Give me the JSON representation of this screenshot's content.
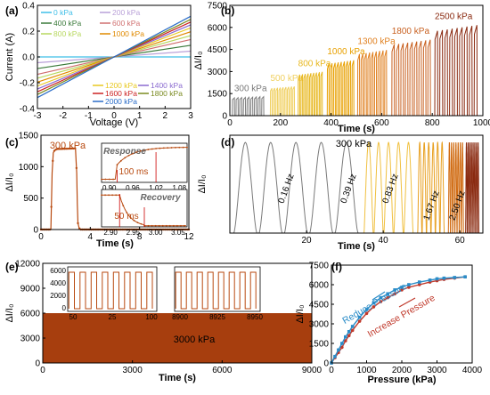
{
  "panels": {
    "a": {
      "letter": "(a)",
      "xlabel": "Voltage (V)",
      "ylabel": "Current (A)",
      "xticks": [
        "-3",
        "-2",
        "-1",
        "0",
        "1",
        "2",
        "3"
      ],
      "yticks": [
        "-0.4",
        "-0.2",
        "0.0",
        "0.2",
        "0.4"
      ]
    },
    "b": {
      "letter": "(b)",
      "xlabel": "Time (s)",
      "ylabel": "ΔI/I₀",
      "xticks": [
        "0",
        "200",
        "400",
        "600",
        "800",
        "1000"
      ],
      "yticks": [
        "0",
        "1500",
        "3000",
        "4500",
        "6000",
        "7500"
      ]
    },
    "c": {
      "letter": "(c)",
      "xlabel": "Time (s)",
      "ylabel": "ΔI/I₀",
      "xticks": [
        "0",
        "4",
        "8",
        "12"
      ],
      "yticks": [
        "0",
        "500",
        "1000",
        "1500"
      ],
      "label": "300 kPa",
      "inset1": {
        "title": "Response",
        "time": "100 ms",
        "xticks": [
          "0.90",
          "0.96",
          "1.02",
          "1.08"
        ]
      },
      "inset2": {
        "title": "Recovery",
        "time": "50 ms",
        "xticks": [
          "2.90",
          "2.95",
          "3.00",
          "3.05"
        ]
      }
    },
    "d": {
      "letter": "(d)",
      "xlabel": "Time (s)",
      "ylabel": "ΔI/I₀",
      "xticks": [
        "20",
        "40",
        "60"
      ],
      "label": "300 kPa",
      "freqs": [
        "0.16 Hz",
        "0.39 Hz",
        "0.83 Hz",
        "1.67 Hz",
        "2.50 Hz"
      ]
    },
    "e": {
      "letter": "(e)",
      "xlabel": "Time (s)",
      "ylabel": "ΔI/I₀",
      "xticks": [
        "0",
        "3000",
        "6000",
        "9000"
      ],
      "yticks": [
        "0",
        "3000",
        "6000",
        "9000",
        "12000"
      ],
      "label": "3000 kPa",
      "inset1": {
        "xticks": [
          "50",
          "25",
          "100"
        ],
        "yticks": [
          "0",
          "2000",
          "4000",
          "6000"
        ]
      },
      "inset2": {
        "xticks": [
          "8900",
          "8925",
          "8950"
        ]
      }
    },
    "f": {
      "letter": "(f)",
      "xlabel": "Pressure (kPa)",
      "ylabel": "ΔI/I₀",
      "xticks": [
        "0",
        "1000",
        "2000",
        "3000",
        "4000"
      ],
      "yticks": [
        "0",
        "1500",
        "3000",
        "4500",
        "6000",
        "7500"
      ],
      "reduce": "Reduce Pressure",
      "increase": "Increase Pressure"
    }
  },
  "colors": {
    "ramp": [
      "#3fbfe8",
      "#b9a0d8",
      "#9ed84a",
      "#e8c020",
      "#f09a00",
      "#e07a00",
      "#c82828",
      "#b04040",
      "#cc2222",
      "#2a8cc8"
    ],
    "sensor": "#b84a10",
    "gray": "#7a7a7a"
  },
  "chart_data": [
    {
      "type": "line",
      "panel": "a",
      "title": "",
      "xlabel": "Voltage (V)",
      "ylabel": "Current (A)",
      "xlim": [
        -3,
        3
      ],
      "ylim": [
        -0.4,
        0.4
      ],
      "series": [
        {
          "name": "0 kPa",
          "slope": 0.0,
          "color": "#3fbfe8"
        },
        {
          "name": "200 kPa",
          "slope": 0.015,
          "color": "#b9a0d8"
        },
        {
          "name": "400 kPa",
          "slope": 0.03,
          "color": "#3a7a3a"
        },
        {
          "name": "600 kPa",
          "slope": 0.045,
          "color": "#d07070"
        },
        {
          "name": "800 kPa",
          "slope": 0.055,
          "color": "#b8d860"
        },
        {
          "name": "1000 kPa",
          "slope": 0.065,
          "color": "#e08a00"
        },
        {
          "name": "1200 kPa",
          "slope": 0.075,
          "color": "#e8c820"
        },
        {
          "name": "1400 kPa",
          "slope": 0.083,
          "color": "#8a6ad0"
        },
        {
          "name": "1600 kPa",
          "slope": 0.09,
          "color": "#cc2222"
        },
        {
          "name": "1800 kPa",
          "slope": 0.097,
          "color": "#7a8a20"
        },
        {
          "name": "2000 kPa",
          "slope": 0.105,
          "color": "#2a6cc8"
        }
      ]
    },
    {
      "type": "line",
      "panel": "b",
      "xlabel": "Time (s)",
      "ylabel": "ΔI/I₀",
      "xlim": [
        0,
        1000
      ],
      "ylim": [
        0,
        7500
      ],
      "groups": [
        {
          "label": "300 kPa",
          "start": 10,
          "end": 140,
          "peak": 1300,
          "color": "#7a7a7a"
        },
        {
          "label": "500 kPa",
          "start": 160,
          "end": 260,
          "peak": 2000,
          "color": "#f0d060"
        },
        {
          "label": "800 kPa",
          "start": 270,
          "end": 370,
          "peak": 3000,
          "color": "#e8b820"
        },
        {
          "label": "1000 kPa",
          "start": 385,
          "end": 495,
          "peak": 3800,
          "color": "#e8a000"
        },
        {
          "label": "1300 kPa",
          "start": 505,
          "end": 625,
          "peak": 4500,
          "color": "#e08020"
        },
        {
          "label": "1800 kPa",
          "start": 640,
          "end": 800,
          "peak": 5200,
          "color": "#c86020"
        },
        {
          "label": "2500 kPa",
          "start": 810,
          "end": 985,
          "peak": 6200,
          "color": "#8a2a10"
        }
      ]
    },
    {
      "type": "line",
      "panel": "c",
      "xlabel": "Time (s)",
      "ylabel": "ΔI/I₀",
      "xlim": [
        0,
        12
      ],
      "ylim": [
        0,
        1500
      ],
      "x": [
        0,
        0.8,
        0.9,
        1.0,
        1.1,
        1.3,
        2.8,
        2.9,
        2.95,
        3.0,
        3.1,
        3.2,
        12
      ],
      "y": [
        0,
        0,
        900,
        1220,
        1260,
        1280,
        1290,
        900,
        400,
        100,
        20,
        0,
        0
      ]
    },
    {
      "type": "line",
      "panel": "d",
      "xlabel": "Time (s)",
      "ylabel": "ΔI/I₀",
      "xlim": [
        0,
        66
      ],
      "ylim": [
        0,
        1350
      ],
      "segments": [
        {
          "freq": "0.16 Hz",
          "start": 1,
          "end": 34,
          "cycles": 5,
          "color": "#7a7a7a"
        },
        {
          "freq": "0.39 Hz",
          "start": 35,
          "end": 48,
          "cycles": 5,
          "color": "#f0c040"
        },
        {
          "freq": "0.83 Hz",
          "start": 49,
          "end": 56,
          "cycles": 6,
          "color": "#e8a020"
        },
        {
          "freq": "1.67 Hz",
          "start": 57,
          "end": 61,
          "cycles": 7,
          "color": "#d06a10"
        },
        {
          "freq": "2.50 Hz",
          "start": 61.5,
          "end": 65,
          "cycles": 8,
          "color": "#8a2a10"
        }
      ]
    },
    {
      "type": "area",
      "panel": "e",
      "xlabel": "Time (s)",
      "ylabel": "ΔI/I₀",
      "xlim": [
        0,
        9000
      ],
      "ylim": [
        0,
        12000
      ],
      "level": 6000,
      "label": "3000 kPa"
    },
    {
      "type": "scatter",
      "panel": "f",
      "xlabel": "Pressure (kPa)",
      "ylabel": "ΔI/I₀",
      "xlim": [
        0,
        4000
      ],
      "ylim": [
        0,
        7500
      ],
      "series": [
        {
          "name": "Increase Pressure",
          "color": "#c0392b",
          "x": [
            0,
            100,
            200,
            300,
            400,
            500,
            600,
            800,
            1000,
            1200,
            1400,
            1600,
            1800,
            2000,
            2200,
            2500,
            2800,
            3000,
            3200,
            3500,
            3800
          ],
          "y": [
            0,
            400,
            800,
            1200,
            1700,
            2100,
            2500,
            3200,
            3800,
            4300,
            4700,
            5000,
            5300,
            5600,
            5800,
            6000,
            6200,
            6300,
            6400,
            6500,
            6600
          ]
        },
        {
          "name": "Reduce Pressure",
          "color": "#2a8cc8",
          "x": [
            0,
            100,
            200,
            300,
            400,
            500,
            600,
            800,
            1000,
            1200,
            1400,
            1600,
            1800,
            2000,
            2200,
            2500,
            2800,
            3000,
            3200,
            3500,
            3800
          ],
          "y": [
            0,
            500,
            1000,
            1500,
            2000,
            2400,
            2800,
            3500,
            4100,
            4600,
            5000,
            5300,
            5600,
            5800,
            6000,
            6200,
            6350,
            6450,
            6500,
            6550,
            6600
          ]
        }
      ]
    }
  ]
}
